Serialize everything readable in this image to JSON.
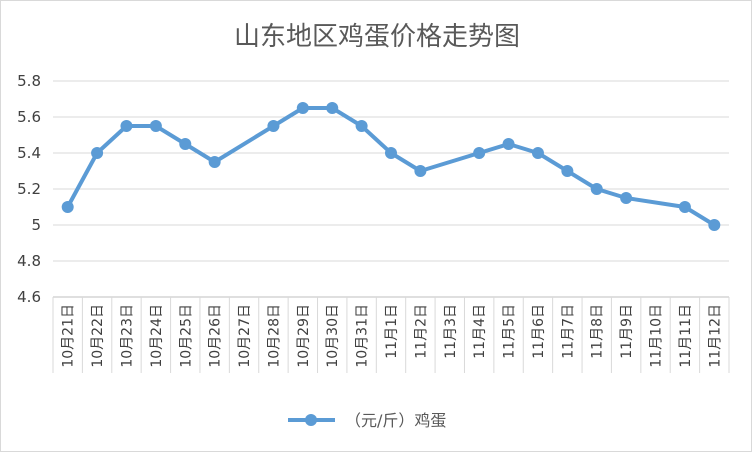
{
  "chart_data": {
    "type": "line",
    "title": "山东地区鸡蛋价格走势图",
    "xlabel": "",
    "ylabel": "",
    "categories": [
      "10月21日",
      "10月22日",
      "10月23日",
      "10月24日",
      "10月25日",
      "10月26日",
      "10月27日",
      "10月28日",
      "10月29日",
      "10月30日",
      "10月31日",
      "11月1日",
      "11月2日",
      "11月3日",
      "11月4日",
      "11月5日",
      "11月6日",
      "11月7日",
      "11月8日",
      "11月9日",
      "11月10日",
      "11月11日",
      "11月12日"
    ],
    "series": [
      {
        "name": "（元/斤）鸡蛋",
        "values": [
          5.1,
          5.4,
          5.55,
          5.55,
          5.45,
          5.35,
          null,
          5.55,
          5.65,
          5.65,
          5.55,
          5.4,
          5.3,
          null,
          5.4,
          5.45,
          5.4,
          5.3,
          5.2,
          5.15,
          null,
          5.1,
          5.0
        ]
      }
    ],
    "ylim": [
      4.6,
      5.8
    ],
    "yticks": [
      "4.6",
      "4.8",
      "5",
      "5.2",
      "5.4",
      "5.6",
      "5.8"
    ],
    "grid": true,
    "legend": "bottom",
    "colors": {
      "line": "#5b9bd5",
      "grid": "#d9d9d9",
      "axis": "#bfbfbf"
    }
  }
}
